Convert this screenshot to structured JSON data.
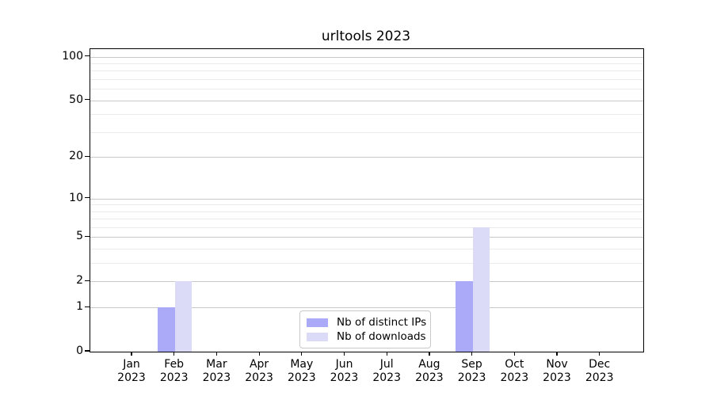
{
  "chart_data": {
    "type": "bar",
    "title": "urltools 2023",
    "xlabel": "",
    "ylabel": "",
    "yscale": "log1p",
    "ylim": [
      0,
      112.7
    ],
    "yticks_major": [
      0,
      1,
      2,
      5,
      10,
      20,
      50,
      100
    ],
    "yticks_minor": [
      3,
      4,
      6,
      7,
      8,
      9,
      30,
      40,
      60,
      70,
      80,
      90
    ],
    "grid": true,
    "legend_position": "bottom-center-inside",
    "categories": [
      {
        "month": "Jan",
        "year": "2023"
      },
      {
        "month": "Feb",
        "year": "2023"
      },
      {
        "month": "Mar",
        "year": "2023"
      },
      {
        "month": "Apr",
        "year": "2023"
      },
      {
        "month": "May",
        "year": "2023"
      },
      {
        "month": "Jun",
        "year": "2023"
      },
      {
        "month": "Jul",
        "year": "2023"
      },
      {
        "month": "Aug",
        "year": "2023"
      },
      {
        "month": "Sep",
        "year": "2023"
      },
      {
        "month": "Oct",
        "year": "2023"
      },
      {
        "month": "Nov",
        "year": "2023"
      },
      {
        "month": "Dec",
        "year": "2023"
      }
    ],
    "series": [
      {
        "name": "Nb of distinct IPs",
        "color": "#aaaaf8",
        "values": [
          0,
          1,
          0,
          0,
          0,
          0,
          0,
          0,
          2,
          0,
          0,
          0
        ]
      },
      {
        "name": "Nb of downloads",
        "color": "#dbdbf8",
        "values": [
          0,
          2,
          0,
          0,
          0,
          0,
          0,
          0,
          6,
          0,
          0,
          0
        ]
      }
    ],
    "colors": {
      "major_gridline": "#c8c8c8",
      "minor_gridline": "#eaeaea",
      "spine": "#000000",
      "background": "#ffffff"
    }
  }
}
